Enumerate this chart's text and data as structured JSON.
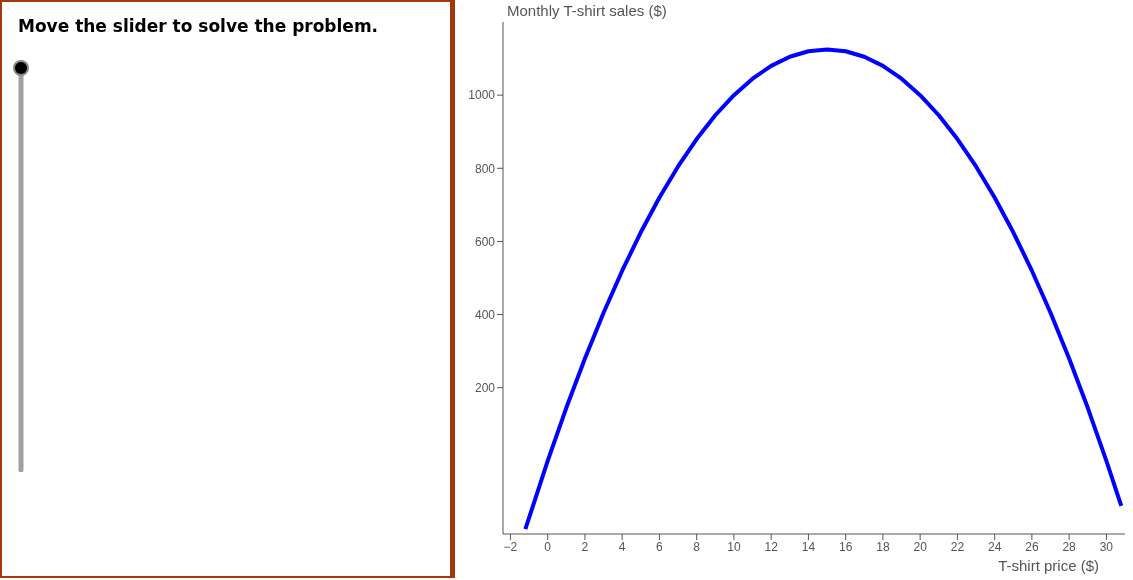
{
  "chart_data": {
    "type": "line",
    "xlabel": "T-shirt price ($)",
    "ylabel": "Monthly T-shirt sales ($)",
    "annotations": [
      "Move the slider to solve the problem."
    ],
    "x": [
      -1.2,
      0,
      1,
      2,
      3,
      4,
      5,
      6,
      7,
      8,
      9,
      10,
      11,
      12,
      13,
      14,
      15,
      16,
      17,
      18,
      19,
      20,
      21,
      22,
      23,
      24,
      25,
      26,
      27,
      28,
      29,
      30,
      30.8
    ],
    "series": [
      {
        "color": "#0000ff",
        "values": [
          -187,
          0,
          145,
          280,
          405,
          520,
          625,
          720,
          805,
          880,
          945,
          1000,
          1045,
          1080,
          1105,
          1120,
          1125,
          1120,
          1105,
          1080,
          1045,
          1000,
          945,
          880,
          805,
          720,
          625,
          520,
          405,
          280,
          145,
          0,
          -123
        ]
      }
    ],
    "xlim": [
      -2.4,
      31
    ],
    "ylim": [
      -200,
      1200
    ],
    "xticks": [
      {
        "value": -2,
        "label": "−2"
      },
      0,
      2,
      4,
      6,
      8,
      10,
      12,
      14,
      16,
      18,
      20,
      22,
      24,
      26,
      28,
      30
    ],
    "yticks": [
      200,
      400,
      600,
      800,
      1000
    ],
    "grid": false,
    "legend": false,
    "marker": "none",
    "line_style": "solid"
  }
}
